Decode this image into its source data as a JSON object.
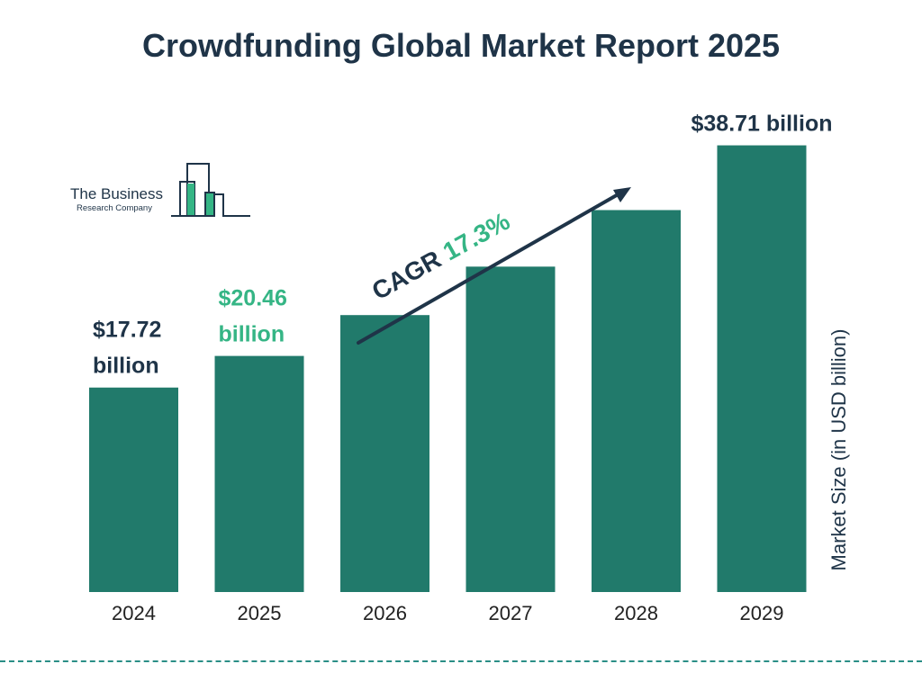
{
  "chart_data": {
    "type": "bar",
    "title": "Crowdfunding Global Market Report 2025",
    "categories": [
      "2024",
      "2025",
      "2026",
      "2027",
      "2028",
      "2029"
    ],
    "values": [
      17.72,
      20.46,
      24.0,
      28.2,
      33.1,
      38.71
    ],
    "value_labels": [
      [
        "$17.72",
        "billion"
      ],
      [
        "$20.46",
        "billion"
      ],
      null,
      null,
      null,
      [
        "$38.71 billion"
      ]
    ],
    "highlight_label_index": 1,
    "xlabel": "",
    "ylabel": "Market Size (in USD billion)",
    "ylim": [
      0,
      40
    ],
    "grid": false,
    "bar_color": "#217a6b",
    "label_color": "#1f3448",
    "highlight_color": "#35b585",
    "cagr": {
      "prefix": "CAGR",
      "value": "17.3%"
    }
  },
  "logo": {
    "line1": "The Business",
    "line2": "Research Company",
    "accent": "#35b585"
  }
}
